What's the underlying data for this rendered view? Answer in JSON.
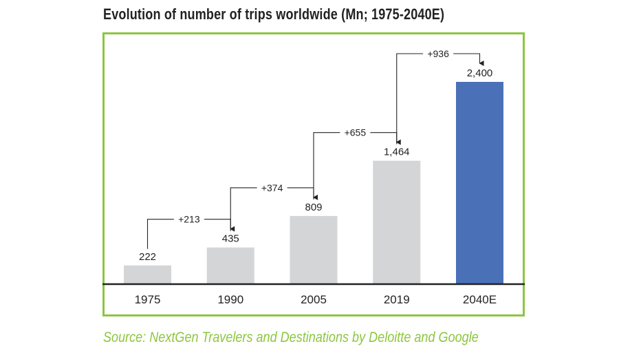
{
  "title": "Evolution of number of trips worldwide (Mn; 1975-2040E)",
  "source": "Source: NextGen Travelers and Destinations by Deloitte and Google",
  "colors": {
    "frame": "#8cc63f",
    "bar_default": "#d4d5d6",
    "bar_highlight": "#4a70b8",
    "axis": "#222222",
    "source": "#8cc63f"
  },
  "chart_data": {
    "type": "bar",
    "title": "Evolution of number of trips worldwide (Mn; 1975-2040E)",
    "categories": [
      "1975",
      "1990",
      "2005",
      "2019",
      "2040E"
    ],
    "values": [
      222,
      435,
      809,
      1464,
      2400
    ],
    "value_labels": [
      "222",
      "435",
      "809",
      "1,464",
      "2,400"
    ],
    "highlight_index": 4,
    "increments": [
      {
        "from": 0,
        "to": 1,
        "label": "+213"
      },
      {
        "from": 1,
        "to": 2,
        "label": "+374"
      },
      {
        "from": 2,
        "to": 3,
        "label": "+655"
      },
      {
        "from": 3,
        "to": 4,
        "label": "+936"
      }
    ],
    "xlabel": "",
    "ylabel": "",
    "ylim": [
      0,
      2400
    ],
    "grid": false,
    "legend": "none"
  }
}
